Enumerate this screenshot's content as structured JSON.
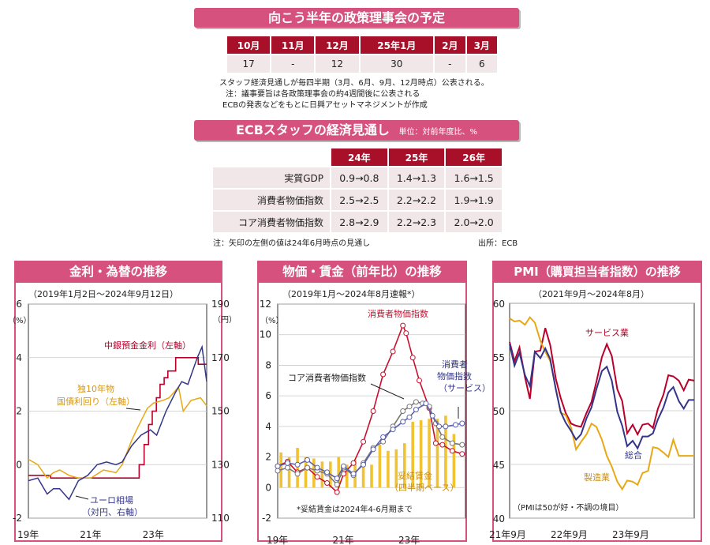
{
  "meetings": {
    "title": "向こう半年の政策理事会の予定",
    "months": [
      "10月",
      "11月",
      "12月",
      "25年1月",
      "2月",
      "3月"
    ],
    "days": [
      "17",
      "-",
      "12",
      "30",
      "-",
      "6"
    ],
    "notes": [
      "スタッフ経済見通しが毎四半期（3月、6月、9月、12月時点）公表される。",
      "注：議事要旨は各政策理事会の約4週間後に公表される",
      "ECBの発表などをもとに日興アセットマネジメントが作成"
    ]
  },
  "staff": {
    "title": "ECBスタッフの経済見通し",
    "unit": "単位：対前年度比、%",
    "years": [
      "24年",
      "25年",
      "26年"
    ],
    "rows": [
      {
        "label": "実質GDP",
        "values": [
          "0.9→0.8",
          "1.4→1.3",
          "1.6→1.5"
        ]
      },
      {
        "label": "消費者物価指数",
        "values": [
          "2.5→2.5",
          "2.2→2.2",
          "1.9→1.9"
        ]
      },
      {
        "label": "コア消費者物価指数",
        "values": [
          "2.8→2.9",
          "2.2→2.3",
          "2.0→2.0"
        ]
      }
    ],
    "note": "注：矢印の左側の値は24年6月時点の見通し",
    "source": "出所：ECB"
  },
  "chart_data": [
    {
      "type": "line",
      "title": "金利・為替の推移",
      "subtitle": "（2019年1月2日～2024年9月12日）",
      "x_ticks": [
        "19年",
        "21年",
        "23年"
      ],
      "left_axis": {
        "unit": "（%）",
        "ticks": [
          "6",
          "4",
          "2",
          "0",
          "-2"
        ],
        "range": [
          -2,
          6
        ]
      },
      "right_axis": {
        "unit": "（円）",
        "ticks": [
          "190",
          "170",
          "150",
          "130",
          "110"
        ],
        "range": [
          110,
          190
        ]
      },
      "x_range": [
        2019.0,
        2024.7
      ],
      "series": [
        {
          "name": "中銀預金金利（左軸）",
          "axis": "left",
          "color": "#b8002a",
          "x": [
            2019.0,
            2019.71,
            2019.71,
            2022.54,
            2022.54,
            2022.7,
            2022.7,
            2022.84,
            2022.84,
            2022.96,
            2022.96,
            2023.09,
            2023.09,
            2023.21,
            2023.21,
            2023.34,
            2023.34,
            2023.46,
            2023.46,
            2023.71,
            2023.71,
            2024.43,
            2024.43,
            2024.7
          ],
          "y": [
            -0.4,
            -0.4,
            -0.5,
            -0.5,
            0.0,
            0.0,
            0.75,
            0.75,
            1.5,
            1.5,
            2.0,
            2.0,
            2.5,
            2.5,
            3.0,
            3.0,
            3.25,
            3.25,
            3.5,
            3.5,
            4.0,
            4.0,
            3.75,
            3.75
          ]
        },
        {
          "name": "独10年物国債利回り（左軸）",
          "axis": "left",
          "color": "#e8a814",
          "x": [
            2019.0,
            2019.3,
            2019.6,
            2019.8,
            2020.0,
            2020.3,
            2020.6,
            2021.0,
            2021.4,
            2021.8,
            2022.0,
            2022.3,
            2022.5,
            2022.8,
            2023.0,
            2023.3,
            2023.5,
            2023.8,
            2023.95,
            2024.2,
            2024.5,
            2024.7
          ],
          "y": [
            0.2,
            0.0,
            -0.5,
            -0.3,
            -0.2,
            -0.4,
            -0.5,
            -0.5,
            -0.2,
            -0.3,
            0.0,
            0.9,
            1.4,
            2.1,
            2.3,
            2.4,
            2.5,
            2.9,
            2.0,
            2.4,
            2.5,
            2.2
          ]
        },
        {
          "name": "ユーロ相場（対円、右軸）",
          "axis": "right",
          "color": "#33358a",
          "x": [
            2019.0,
            2019.3,
            2019.6,
            2019.8,
            2020.0,
            2020.3,
            2020.6,
            2020.9,
            2021.2,
            2021.5,
            2021.8,
            2022.0,
            2022.3,
            2022.6,
            2022.9,
            2023.1,
            2023.4,
            2023.7,
            2023.9,
            2024.1,
            2024.4,
            2024.55,
            2024.7
          ],
          "y": [
            124,
            125,
            119,
            121,
            121,
            117,
            124,
            126,
            130,
            131,
            130,
            131,
            137,
            141,
            143,
            141,
            150,
            157,
            161,
            160,
            170,
            174,
            161
          ]
        }
      ],
      "labels": [
        "中銀預金金利（左軸）",
        "独10年物",
        "国債利回り（左軸）",
        "ユーロ相場",
        "（対円、右軸）"
      ]
    },
    {
      "type": "line",
      "title": "物価・賃金（前年比）の推移",
      "subtitle": "（2019年1月～2024年8月速報*）",
      "x_ticks": [
        "19年",
        "21年",
        "23年"
      ],
      "y_axis": {
        "unit": "（%）",
        "ticks": [
          "12",
          "10",
          "8",
          "6",
          "4",
          "2",
          "0",
          "-2"
        ],
        "range": [
          -2,
          12
        ]
      },
      "x_range": [
        2019.0,
        2024.7
      ],
      "series": [
        {
          "name": "消費者物価指数",
          "color": "#c8102e",
          "x": [
            2019.0,
            2019.3,
            2019.6,
            2019.9,
            2020.2,
            2020.5,
            2020.8,
            2021.0,
            2021.3,
            2021.6,
            2021.9,
            2022.2,
            2022.5,
            2022.8,
            2022.9,
            2023.1,
            2023.3,
            2023.6,
            2023.8,
            2024.0,
            2024.3,
            2024.6
          ],
          "y": [
            1.4,
            1.7,
            1.0,
            1.3,
            0.7,
            0.3,
            -0.3,
            0.9,
            1.6,
            3.0,
            5.0,
            7.4,
            8.9,
            10.6,
            10.1,
            8.5,
            7.0,
            5.2,
            2.9,
            2.8,
            2.4,
            2.2
          ]
        },
        {
          "name": "コア消費者物価指数",
          "color": "#777777",
          "x": [
            2019.0,
            2019.3,
            2019.6,
            2019.9,
            2020.2,
            2020.5,
            2020.8,
            2021.0,
            2021.3,
            2021.6,
            2021.9,
            2022.2,
            2022.5,
            2022.8,
            2023.0,
            2023.2,
            2023.4,
            2023.6,
            2023.8,
            2024.0,
            2024.3,
            2024.6
          ],
          "y": [
            1.1,
            1.3,
            0.9,
            1.3,
            1.1,
            0.9,
            0.2,
            1.3,
            0.8,
            1.6,
            2.6,
            3.0,
            4.0,
            5.0,
            5.3,
            5.6,
            5.5,
            5.3,
            4.2,
            3.3,
            2.9,
            2.8
          ]
        },
        {
          "name": "消費者物価指数（サービス）",
          "color": "#5b60b0",
          "x": [
            2019.0,
            2019.3,
            2019.6,
            2019.9,
            2020.2,
            2020.5,
            2020.8,
            2021.0,
            2021.3,
            2021.6,
            2021.9,
            2022.2,
            2022.5,
            2022.8,
            2023.0,
            2023.2,
            2023.5,
            2023.7,
            2023.9,
            2024.1,
            2024.4,
            2024.6
          ],
          "y": [
            1.4,
            1.6,
            1.5,
            1.8,
            1.3,
            1.0,
            0.6,
            1.4,
            0.9,
            1.5,
            2.5,
            3.3,
            3.8,
            4.3,
            4.6,
            5.1,
            5.5,
            4.7,
            4.0,
            4.0,
            4.1,
            4.2
          ]
        }
      ],
      "bars": {
        "name": "妥結賃金（四半期ベース）",
        "color": "#f1c232",
        "x": [
          2019.1,
          2019.35,
          2019.6,
          2019.85,
          2020.1,
          2020.35,
          2020.6,
          2020.85,
          2021.1,
          2021.35,
          2021.6,
          2021.85,
          2022.1,
          2022.35,
          2022.6,
          2022.85,
          2023.1,
          2023.35,
          2023.6,
          2023.85,
          2024.1,
          2024.35
        ],
        "y": [
          2.3,
          2.0,
          2.6,
          2.0,
          1.9,
          1.7,
          1.7,
          2.0,
          1.5,
          1.8,
          1.4,
          1.5,
          2.8,
          2.4,
          2.5,
          2.9,
          4.3,
          4.4,
          4.5,
          4.5,
          4.7,
          3.5
        ]
      },
      "labels": [
        "消費者物価指数",
        "コア消費者物価指数",
        "消費者",
        "物価指数",
        "（サービス）",
        "妥結賃金",
        "（四半期ベース）"
      ],
      "footnote": "*妥結賃金は2024年4-6月期まで"
    },
    {
      "type": "line",
      "title": "PMI（購買担当者指数）の推移",
      "subtitle": "（2021年9月～2024年8月）",
      "x_ticks": [
        "21年9月",
        "22年9月",
        "23年9月"
      ],
      "y_axis": {
        "ticks": [
          "60",
          "55",
          "50",
          "45",
          "40"
        ],
        "range": [
          40,
          60
        ]
      },
      "x_range": [
        2021.67,
        2024.67
      ],
      "series": [
        {
          "name": "サービス業",
          "color": "#b8002a",
          "x": [
            2021.67,
            2021.75,
            2021.83,
            2021.92,
            2022.0,
            2022.08,
            2022.17,
            2022.25,
            2022.33,
            2022.42,
            2022.5,
            2022.58,
            2022.67,
            2022.75,
            2022.83,
            2022.92,
            2023.0,
            2023.08,
            2023.17,
            2023.25,
            2023.33,
            2023.42,
            2023.5,
            2023.58,
            2023.67,
            2023.75,
            2023.83,
            2023.92,
            2024.0,
            2024.08,
            2024.17,
            2024.25,
            2024.33,
            2024.42,
            2024.5,
            2024.58,
            2024.67
          ],
          "y": [
            56.4,
            54.6,
            55.9,
            53.1,
            51.1,
            55.5,
            55.6,
            57.7,
            56.1,
            53.0,
            51.2,
            49.8,
            48.8,
            48.6,
            48.5,
            49.8,
            50.8,
            52.7,
            55.0,
            56.2,
            55.1,
            52.0,
            50.9,
            47.9,
            48.7,
            47.8,
            48.7,
            48.8,
            48.4,
            50.2,
            51.5,
            53.3,
            53.2,
            52.8,
            51.9,
            52.9,
            52.8
          ]
        },
        {
          "name": "製造業",
          "color": "#e8a814",
          "x": [
            2021.67,
            2021.75,
            2021.83,
            2021.92,
            2022.0,
            2022.08,
            2022.17,
            2022.25,
            2022.33,
            2022.42,
            2022.5,
            2022.58,
            2022.67,
            2022.75,
            2022.83,
            2022.92,
            2023.0,
            2023.08,
            2023.17,
            2023.25,
            2023.33,
            2023.42,
            2023.5,
            2023.58,
            2023.67,
            2023.75,
            2023.83,
            2023.92,
            2024.0,
            2024.08,
            2024.17,
            2024.25,
            2024.33,
            2024.42,
            2024.5,
            2024.58,
            2024.67
          ],
          "y": [
            58.6,
            58.3,
            58.4,
            58.0,
            58.7,
            58.2,
            56.5,
            55.5,
            54.6,
            52.1,
            49.8,
            49.6,
            48.4,
            46.4,
            47.1,
            47.8,
            48.8,
            48.5,
            47.3,
            45.8,
            44.8,
            43.4,
            42.7,
            43.5,
            43.4,
            43.1,
            44.2,
            44.4,
            46.6,
            46.5,
            46.1,
            45.7,
            47.3,
            45.8,
            45.8,
            45.8,
            45.8
          ]
        },
        {
          "name": "総合",
          "color": "#33358a",
          "x": [
            2021.67,
            2021.75,
            2021.83,
            2021.92,
            2022.0,
            2022.08,
            2022.17,
            2022.25,
            2022.33,
            2022.42,
            2022.5,
            2022.58,
            2022.67,
            2022.75,
            2022.83,
            2022.92,
            2023.0,
            2023.08,
            2023.17,
            2023.25,
            2023.33,
            2023.42,
            2023.5,
            2023.58,
            2023.67,
            2023.75,
            2023.83,
            2023.92,
            2024.0,
            2024.08,
            2024.17,
            2024.25,
            2024.33,
            2024.42,
            2024.5,
            2024.58,
            2024.67
          ],
          "y": [
            56.2,
            54.2,
            55.4,
            53.3,
            52.3,
            55.5,
            54.9,
            55.8,
            54.8,
            52.0,
            49.9,
            48.9,
            48.1,
            47.3,
            47.8,
            49.3,
            50.3,
            52.0,
            53.7,
            54.1,
            52.8,
            49.9,
            48.6,
            46.7,
            47.2,
            46.5,
            47.6,
            47.6,
            47.9,
            49.2,
            50.3,
            51.7,
            52.2,
            50.9,
            50.2,
            51.0,
            51.0
          ]
        }
      ],
      "labels": [
        "サービス業",
        "総合",
        "製造業"
      ],
      "footnote": "（PMIは50が好・不調の境目）"
    }
  ]
}
